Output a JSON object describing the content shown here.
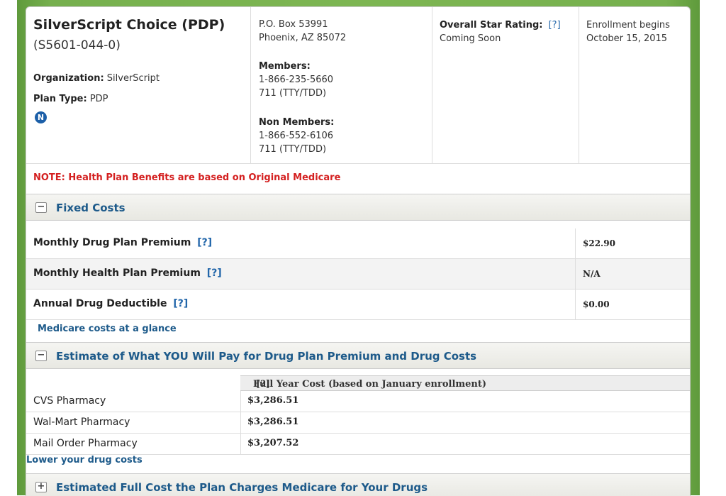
{
  "plan": {
    "name": "SilverScript Choice (PDP)",
    "id": "(S5601-044-0)",
    "organization_label": "Organization:",
    "organization": "SilverScript",
    "plan_type_label": "Plan Type:",
    "plan_type": "PDP",
    "badge": "N"
  },
  "contact": {
    "address_line1": "P.O. Box 53991",
    "address_line2": "Phoenix, AZ 85072",
    "members_label": "Members:",
    "members_phone": "1-866-235-5660",
    "members_tty": "711 (TTY/TDD)",
    "nonmembers_label": "Non Members:",
    "nonmembers_phone": "1-866-552-6106",
    "nonmembers_tty": "711 (TTY/TDD)"
  },
  "rating": {
    "label": "Overall Star Rating:",
    "help": "[?]",
    "value": "Coming Soon"
  },
  "enrollment": {
    "line1": "Enrollment begins",
    "line2": "October 15, 2015"
  },
  "note": "NOTE: Health Plan Benefits are based on Original Medicare",
  "fixed_costs": {
    "toggle": "−",
    "title": "Fixed Costs",
    "rows": [
      {
        "label": "Monthly Drug Plan Premium",
        "help": "[?]",
        "value": "$22.90"
      },
      {
        "label": "Monthly Health Plan Premium",
        "help": "[?]",
        "value": "N/A"
      },
      {
        "label": "Annual Drug Deductible",
        "help": "[?]",
        "value": "$0.00"
      }
    ],
    "link": "Medicare costs at a glance"
  },
  "estimate": {
    "toggle": "−",
    "title": "Estimate of What YOU Will Pay for Drug Plan Premium and Drug Costs",
    "column_header": "Full Year Cost (based on January enrollment)",
    "column_help": "[?]",
    "rows": [
      {
        "pharmacy": "CVS Pharmacy",
        "cost": "$3,286.51"
      },
      {
        "pharmacy": "Wal-Mart Pharmacy",
        "cost": "$3,286.51"
      },
      {
        "pharmacy": "Mail Order Pharmacy",
        "cost": "$3,207.52"
      }
    ],
    "link": "Lower your drug costs"
  },
  "full_cost": {
    "toggle": "+",
    "title": "Estimated Full Cost the Plan Charges Medicare for Your Drugs"
  }
}
